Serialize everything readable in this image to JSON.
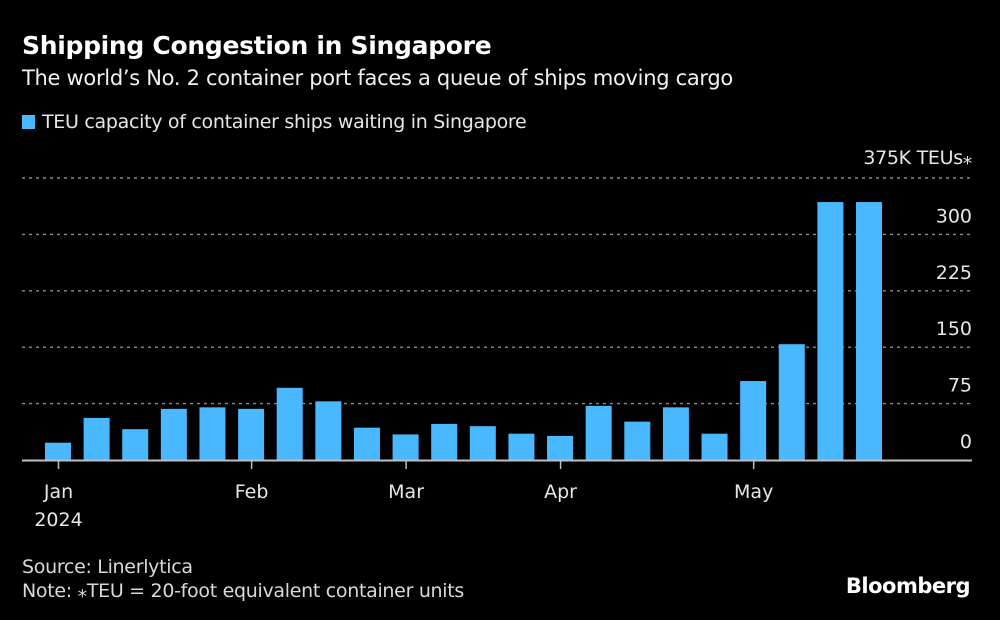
{
  "header": {
    "title": "Shipping Congestion in Singapore",
    "subtitle": "The world’s No. 2 container port faces a queue of ships moving cargo"
  },
  "legend": {
    "label": "TEU capacity of container ships waiting in Singapore",
    "color": "#4ab8ff"
  },
  "footer": {
    "source": "Source: Linerlytica",
    "note": "Note: ⁎TEU = 20-foot equivalent container units",
    "brand": "Bloomberg"
  },
  "chart_data": {
    "type": "bar",
    "title": "Shipping Congestion in Singapore",
    "subtitle": "The world’s No. 2 container port faces a queue of ships moving cargo",
    "series": [
      {
        "name": "TEU capacity of container ships waiting in Singapore",
        "color": "#4ab8ff",
        "values": [
          23,
          56,
          41,
          68,
          70,
          68,
          96,
          78,
          43,
          34,
          48,
          45,
          35,
          32,
          72,
          51,
          70,
          35,
          105,
          154,
          343,
          343
        ]
      }
    ],
    "x_ticks": [
      {
        "label": "Jan",
        "sublabel": "2024",
        "index": 0.35
      },
      {
        "label": "Feb",
        "index": 5.35
      },
      {
        "label": "Mar",
        "index": 9.35
      },
      {
        "label": "Apr",
        "index": 13.35
      },
      {
        "label": "May",
        "index": 18.35
      }
    ],
    "y_ticks": [
      0,
      75,
      150,
      225,
      300,
      375
    ],
    "y_tick_labels": [
      "0",
      "75",
      "150",
      "225",
      "300",
      "375K TEUs⁎"
    ],
    "ylim": [
      0,
      375
    ],
    "ylabel": "K TEUs",
    "xlabel": "",
    "grid": true,
    "y_axis_side": "right",
    "legend_position": "top-left"
  }
}
